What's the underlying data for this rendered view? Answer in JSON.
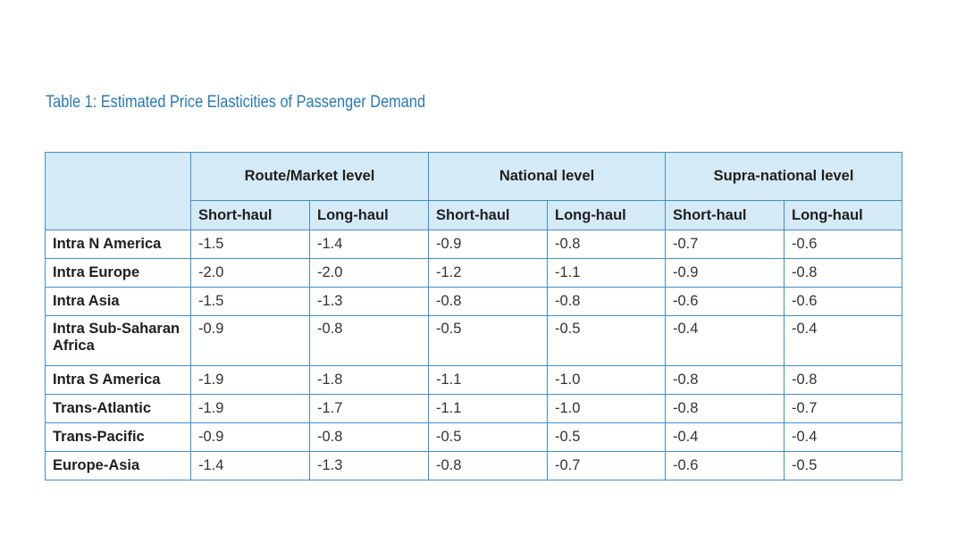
{
  "title": "Table 1: Estimated Price Elasticities of Passenger Demand",
  "header": {
    "groups": [
      "Route/Market level",
      "National level",
      "Supra-national level"
    ],
    "subcols": [
      "Short-haul",
      "Long-haul",
      "Short-haul",
      "Long-haul",
      "Short-haul",
      "Long-haul"
    ]
  },
  "rows": [
    {
      "label": "Intra N America",
      "values": [
        "-1.5",
        "-1.4",
        "-0.9",
        "-0.8",
        "-0.7",
        "-0.6"
      ]
    },
    {
      "label": "Intra Europe",
      "values": [
        "-2.0",
        "-2.0",
        "-1.2",
        "-1.1",
        "-0.9",
        "-0.8"
      ]
    },
    {
      "label": "Intra Asia",
      "values": [
        "-1.5",
        "-1.3",
        "-0.8",
        "-0.8",
        "-0.6",
        "-0.6"
      ]
    },
    {
      "label": "Intra Sub-Saharan Africa",
      "values": [
        "-0.9",
        "-0.8",
        "-0.5",
        "-0.5",
        "-0.4",
        "-0.4"
      ]
    },
    {
      "label": "Intra S America",
      "values": [
        "-1.9",
        "-1.8",
        "-1.1",
        "-1.0",
        "-0.8",
        "-0.8"
      ]
    },
    {
      "label": "Trans-Atlantic",
      "values": [
        "-1.9",
        "-1.7",
        "-1.1",
        "-1.0",
        "-0.8",
        "-0.7"
      ]
    },
    {
      "label": "Trans-Pacific",
      "values": [
        "-0.9",
        "-0.8",
        "-0.5",
        "-0.5",
        "-0.4",
        "-0.4"
      ]
    },
    {
      "label": "Europe-Asia",
      "values": [
        "-1.4",
        "-1.3",
        "-0.8",
        "-0.7",
        "-0.6",
        "-0.5"
      ]
    }
  ],
  "colors": {
    "title": "#2a7ab8",
    "border": "#3d8fd0",
    "header_fill": "#d4eaf7"
  }
}
